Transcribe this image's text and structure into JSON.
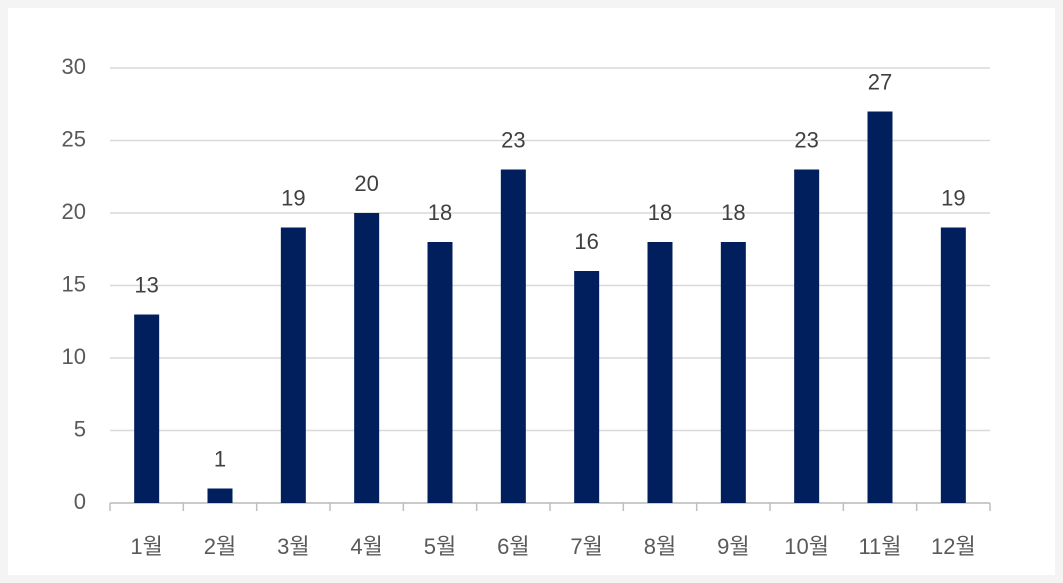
{
  "chart_data": {
    "type": "bar",
    "categories": [
      "1월",
      "2월",
      "3월",
      "4월",
      "5월",
      "6월",
      "7월",
      "8월",
      "9월",
      "10월",
      "11월",
      "12월"
    ],
    "values": [
      13,
      1,
      19,
      20,
      18,
      23,
      16,
      18,
      18,
      23,
      27,
      19
    ],
    "color": "#001f5c",
    "ylim": [
      0,
      30
    ],
    "yticks": [
      0,
      5,
      10,
      15,
      20,
      25,
      30
    ],
    "grid": true
  }
}
